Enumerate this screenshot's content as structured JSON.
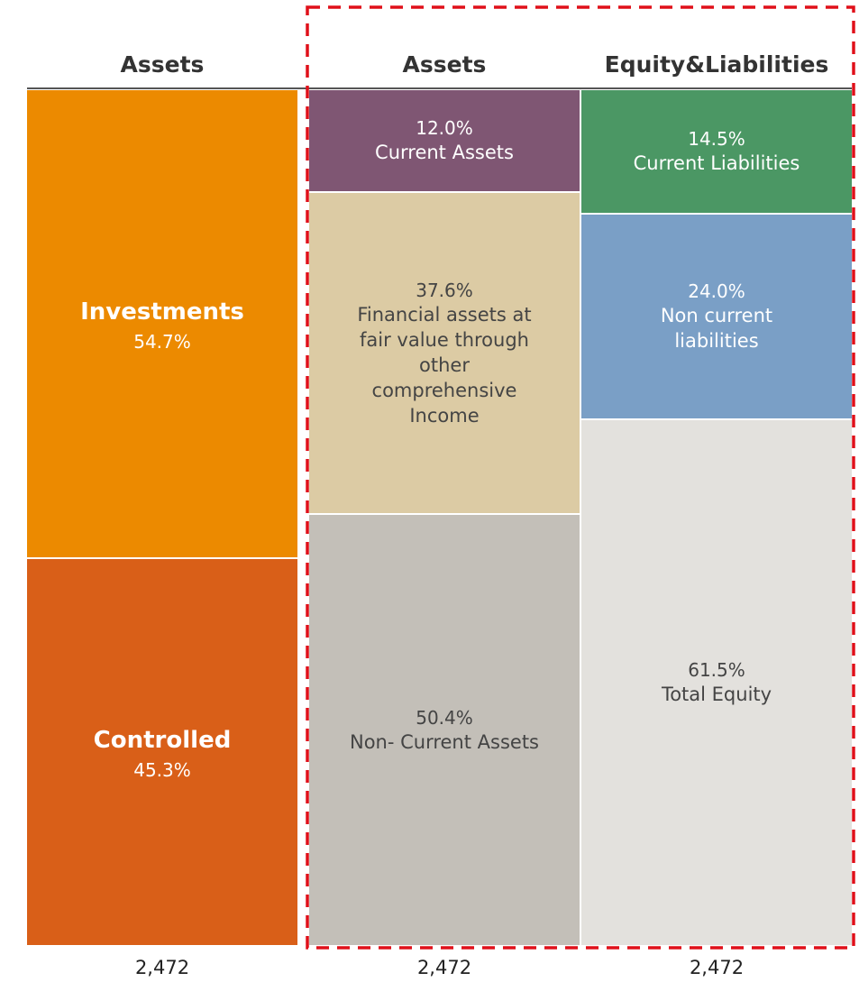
{
  "chart_data": {
    "type": "stacked_bar",
    "ylim": [
      0,
      100
    ],
    "columns": [
      {
        "title": "Assets",
        "total": {
          "value": 2472,
          "label": "2,472"
        },
        "categories": [
          "Investments",
          "Controlled"
        ],
        "values": [
          54.7,
          45.3
        ],
        "value_labels": [
          "54.7%",
          "45.3%"
        ],
        "colors": [
          "#ec8a00",
          "#d95f18"
        ],
        "label_colors": [
          "#ffffff",
          "#ffffff"
        ]
      },
      {
        "title": "Assets",
        "total": {
          "value": 2472,
          "label": "2,472"
        },
        "categories": [
          "Current Assets",
          "Financial assets at fair value  through other comprehensive Income",
          "Non- Current Assets"
        ],
        "values": [
          12.0,
          37.6,
          50.4
        ],
        "value_labels": [
          "12.0%",
          "37.6%",
          "50.4%"
        ],
        "colors": [
          "#7f5673",
          "#dccba4",
          "#c3bfb8"
        ],
        "label_colors": [
          "#ffffff",
          "#444444",
          "#444444"
        ]
      },
      {
        "title": "Equity&Liabilities",
        "total": {
          "value": 2472,
          "label": "2,472"
        },
        "categories": [
          "Current Liabilities",
          "Non current liabilities",
          "Total Equity"
        ],
        "values": [
          14.5,
          24.0,
          61.5
        ],
        "value_labels": [
          "14.5%",
          "24.0%",
          "61.5%"
        ],
        "colors": [
          "#4b9764",
          "#7a9fc6",
          "#e3e1dd"
        ],
        "label_colors": [
          "#ffffff",
          "#ffffff",
          "#444444"
        ]
      }
    ]
  }
}
